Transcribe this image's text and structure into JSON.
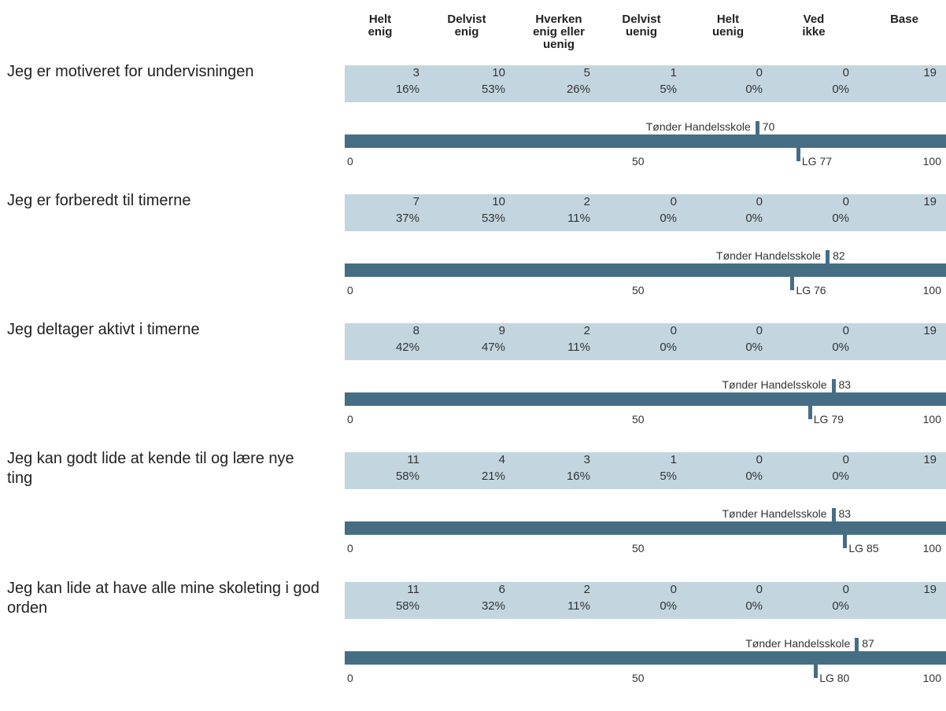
{
  "chart_data": {
    "type": "table",
    "columns": [
      "Helt\nenig",
      "Delvist\nenig",
      "Hverken\nenig eller\nuenig",
      "Delvist\nuenig",
      "Helt\nuenig",
      "Ved\nikke",
      "Base"
    ],
    "axis_ticks": [
      "0",
      "50",
      "100"
    ],
    "scale": [
      0,
      100
    ],
    "school_name": "Tønder Handelsskole",
    "lg_prefix": "LG",
    "rows": [
      {
        "question": "Jeg er motiveret for undervisningen",
        "counts": [
          "3",
          "10",
          "5",
          "1",
          "0",
          "0",
          "19"
        ],
        "percents": [
          "16%",
          "53%",
          "26%",
          "5%",
          "0%",
          "0%"
        ],
        "school_value": 70,
        "school_label": "70",
        "lg_value": 77,
        "lg_label": "LG 77"
      },
      {
        "question": "Jeg er forberedt til timerne",
        "counts": [
          "7",
          "10",
          "2",
          "0",
          "0",
          "0",
          "19"
        ],
        "percents": [
          "37%",
          "53%",
          "11%",
          "0%",
          "0%",
          "0%"
        ],
        "school_value": 82,
        "school_label": "82",
        "lg_value": 76,
        "lg_label": "LG 76"
      },
      {
        "question": "Jeg deltager aktivt i timerne",
        "counts": [
          "8",
          "9",
          "2",
          "0",
          "0",
          "0",
          "19"
        ],
        "percents": [
          "42%",
          "47%",
          "11%",
          "0%",
          "0%",
          "0%"
        ],
        "school_value": 83,
        "school_label": "83",
        "lg_value": 79,
        "lg_label": "LG 79"
      },
      {
        "question": "Jeg kan godt lide at kende til og lære nye ting",
        "counts": [
          "11",
          "4",
          "3",
          "1",
          "0",
          "0",
          "19"
        ],
        "percents": [
          "58%",
          "21%",
          "16%",
          "5%",
          "0%",
          "0%"
        ],
        "school_value": 83,
        "school_label": "83",
        "lg_value": 85,
        "lg_label": "LG 85"
      },
      {
        "question": "Jeg kan lide at have alle mine skoleting i god orden",
        "counts": [
          "11",
          "6",
          "2",
          "0",
          "0",
          "0",
          "19"
        ],
        "percents": [
          "58%",
          "32%",
          "11%",
          "0%",
          "0%",
          "0%"
        ],
        "school_value": 87,
        "school_label": "87",
        "lg_value": 80,
        "lg_label": "LG 80"
      }
    ]
  }
}
